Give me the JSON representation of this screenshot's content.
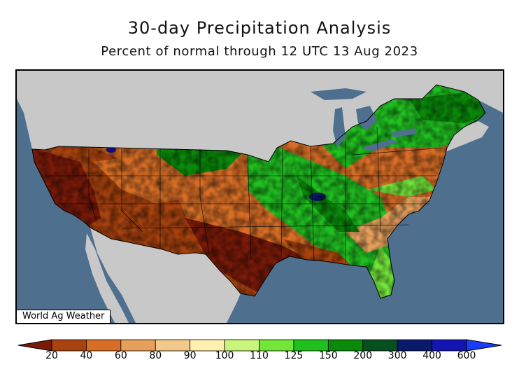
{
  "title": "30-day Precipitation Analysis",
  "subtitle": "Percent of normal through 12 UTC 13 Aug 2023",
  "watermark": "World Ag Weather",
  "colors": {
    "ocean": "#4f6f8f",
    "foreign_land": "#c8c8c8",
    "lakes": "#4f6f8f",
    "boundaries": "#000000"
  },
  "legend": {
    "ticks": [
      "20",
      "40",
      "60",
      "80",
      "90",
      "100",
      "110",
      "125",
      "150",
      "200",
      "300",
      "400",
      "600"
    ],
    "bins": [
      {
        "color": "#7a1a08"
      },
      {
        "color": "#a8420e"
      },
      {
        "color": "#d86e26"
      },
      {
        "color": "#e6a05c"
      },
      {
        "color": "#f2c98a"
      },
      {
        "color": "#fff0b2"
      },
      {
        "color": "#c8f57a"
      },
      {
        "color": "#73e63a"
      },
      {
        "color": "#20c020"
      },
      {
        "color": "#0a8a0a"
      },
      {
        "color": "#064f20"
      },
      {
        "color": "#0a1a6a"
      },
      {
        "color": "#1414b0"
      },
      {
        "color": "#1a3cff"
      }
    ]
  }
}
